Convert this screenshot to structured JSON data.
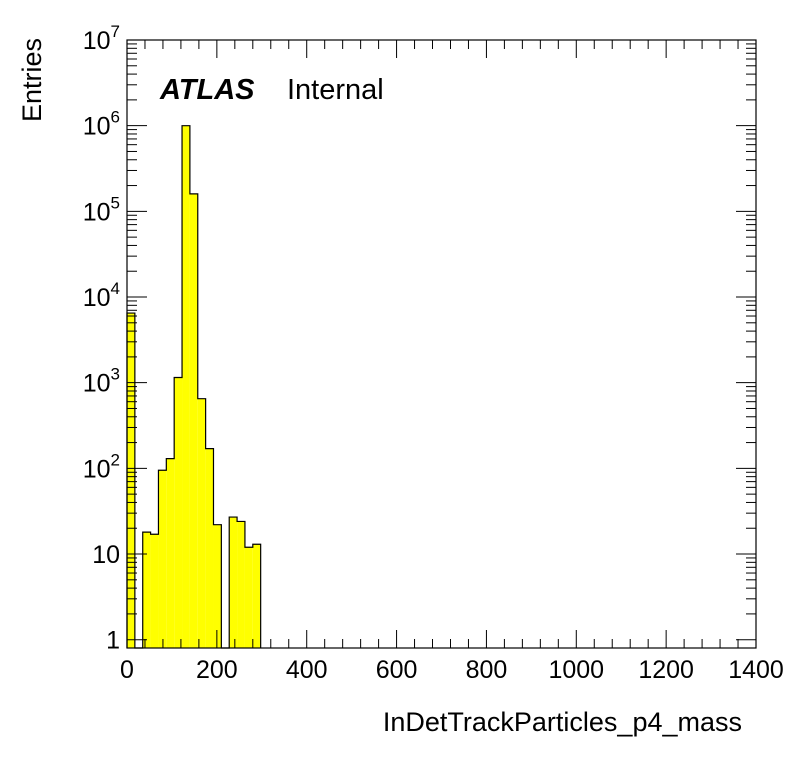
{
  "chart_data": {
    "type": "bar",
    "subtype": "histogram-step",
    "xlabel": "InDetTrackParticles_p4_mass",
    "ylabel": "Entries",
    "label": {
      "experiment": "ATLAS",
      "status": "Internal"
    },
    "xlim": [
      0,
      1400
    ],
    "ylim": [
      0.8,
      10000000
    ],
    "log_y": true,
    "grid": false,
    "fill_color": "#ffff00",
    "line_color": "#000000",
    "bin_width": 17.5,
    "x_ticks": [
      "0",
      "200",
      "400",
      "600",
      "800",
      "1000",
      "1200",
      "1400"
    ],
    "y_ticks": [
      {
        "value": 1,
        "base": "1",
        "exp": ""
      },
      {
        "value": 10,
        "base": "10",
        "exp": ""
      },
      {
        "value": 100,
        "base": "10",
        "exp": "2"
      },
      {
        "value": 1000,
        "base": "10",
        "exp": "3"
      },
      {
        "value": 10000,
        "base": "10",
        "exp": "4"
      },
      {
        "value": 100000,
        "base": "10",
        "exp": "5"
      },
      {
        "value": 1000000,
        "base": "10",
        "exp": "6"
      },
      {
        "value": 10000000,
        "base": "10",
        "exp": "7"
      }
    ],
    "bins": [
      {
        "x0": 0,
        "x1": 17.5,
        "value": 6500
      },
      {
        "x0": 17.5,
        "x1": 35,
        "value": 0
      },
      {
        "x0": 35,
        "x1": 52.5,
        "value": 18
      },
      {
        "x0": 52.5,
        "x1": 70,
        "value": 17
      },
      {
        "x0": 70,
        "x1": 87.5,
        "value": 95
      },
      {
        "x0": 87.5,
        "x1": 105,
        "value": 130
      },
      {
        "x0": 105,
        "x1": 122.5,
        "value": 1150
      },
      {
        "x0": 122.5,
        "x1": 140,
        "value": 1000000
      },
      {
        "x0": 140,
        "x1": 157.5,
        "value": 160000
      },
      {
        "x0": 157.5,
        "x1": 175,
        "value": 650
      },
      {
        "x0": 175,
        "x1": 192.5,
        "value": 170
      },
      {
        "x0": 192.5,
        "x1": 210,
        "value": 22
      },
      {
        "x0": 210,
        "x1": 227.5,
        "value": 0
      },
      {
        "x0": 227.5,
        "x1": 245,
        "value": 27
      },
      {
        "x0": 245,
        "x1": 262.5,
        "value": 24
      },
      {
        "x0": 262.5,
        "x1": 280,
        "value": 12
      },
      {
        "x0": 280,
        "x1": 297.5,
        "value": 13
      }
    ]
  }
}
